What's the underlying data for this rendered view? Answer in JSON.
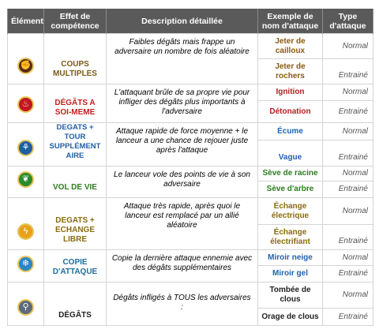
{
  "headers": {
    "element": "Élément",
    "effect": "Effet de compétence",
    "description": "Description détaillée",
    "example": "Exemple de nom d'attaque",
    "type": "Type d'attaque"
  },
  "colors": {
    "header_bg": "#5a5a5a",
    "brown": "#7b5a17",
    "red": "#c31e1e",
    "blue": "#1f5fa4",
    "green": "#2c7d1c",
    "teal": "#1c6f9c"
  },
  "rows": [
    {
      "icon": "multi-hit-icon",
      "effect": "COUPS MULTIPLES",
      "description": "Faibles dégâts mais frappe un adversaire un nombre de fois aléatoire",
      "attacks": [
        {
          "name": "Jeter de cailloux",
          "type": "Normal"
        },
        {
          "name": "Jeter de rochers",
          "type": "Entrainé"
        }
      ]
    },
    {
      "icon": "fire-icon",
      "effect": "DÉGÂTS A SOI-MEME",
      "description": "L'attaquant brûle de sa propre vie pour infliger des dégâts plus importants à l'adversaire",
      "attacks": [
        {
          "name": "Ignition",
          "type": "Normal"
        },
        {
          "name": "Détonation",
          "type": "Entrainé"
        }
      ]
    },
    {
      "icon": "extra-turn-icon",
      "effect": "DEGATS + TOUR SUPPLÉMENT AIRE",
      "description": "Attaque rapide de force moyenne + le lanceur a une chance de rejouer juste après l'attaque",
      "attacks": [
        {
          "name": "Écume",
          "type": "Normal"
        },
        {
          "name": "Vague",
          "type": "Entrainé"
        }
      ]
    },
    {
      "icon": "leaf-icon",
      "effect": "VOL DE VIE",
      "description": "Le lanceur vole des points de vie à son adversaire",
      "attacks": [
        {
          "name": "Sève de racine",
          "type": "Normal"
        },
        {
          "name": "Sève d'arbre",
          "type": "Entrainé"
        }
      ]
    },
    {
      "icon": "lightning-icon",
      "effect": "DEGATS + ECHANGE LIBRE",
      "description": "Attaque très rapide, après quoi le lanceur est remplacé par un allié aléatoire",
      "attacks": [
        {
          "name": "Échange électrique",
          "type": "Normal"
        },
        {
          "name": "Échange électrifiant",
          "type": "Entrainé"
        }
      ]
    },
    {
      "icon": "snowflake-icon",
      "effect": "COPIE D'ATTAQUE",
      "description": "Copie la dernière attaque ennemie avec des dégâts supplémentaires",
      "attacks": [
        {
          "name": "Miroir neige",
          "type": "Normal"
        },
        {
          "name": "Miroir gel",
          "type": "Entrainé"
        }
      ]
    },
    {
      "icon": "nail-icon",
      "effect": "DÉGÂTS",
      "description": "Dégâts infligés à TOUS les adversaires :",
      "attacks": [
        {
          "name": "Tombée de clous",
          "type": "Normal"
        },
        {
          "name": "Orage de clous",
          "type": "Entrainé"
        }
      ]
    }
  ]
}
